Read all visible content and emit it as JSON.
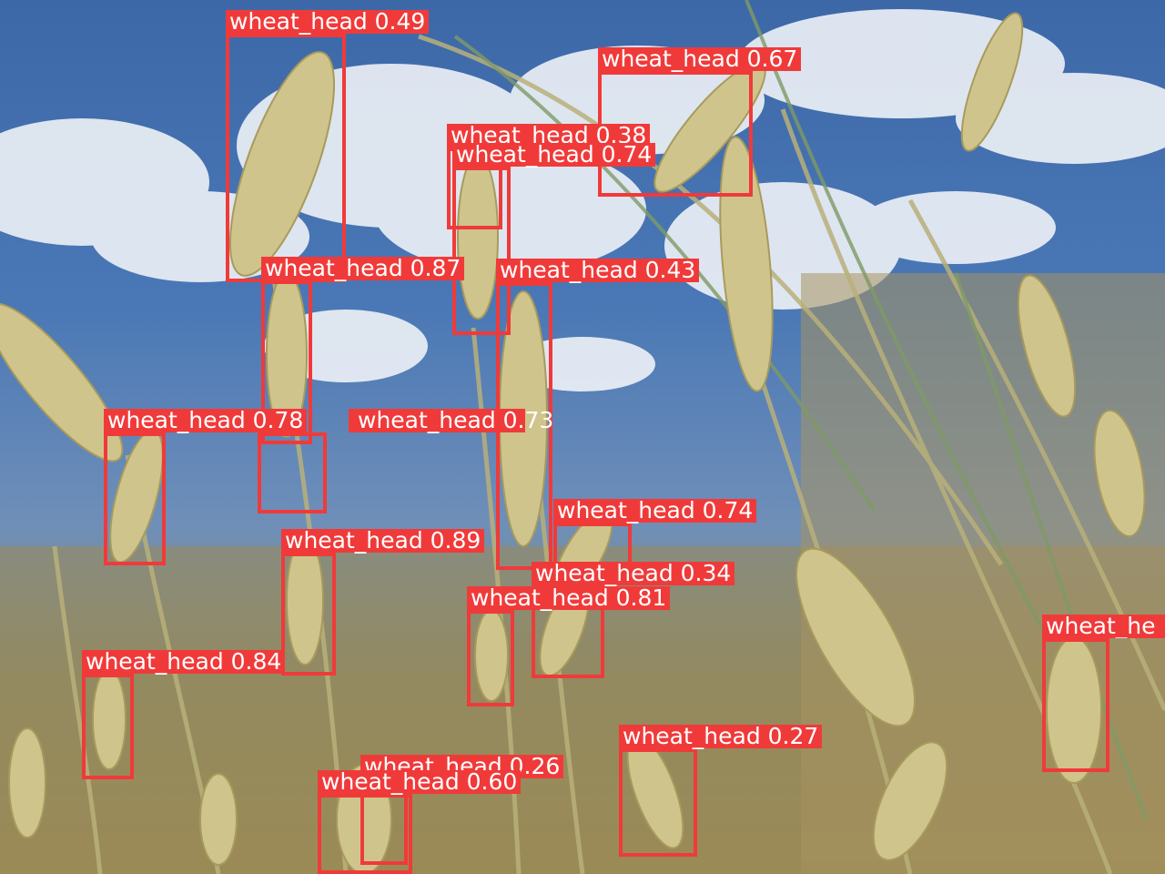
{
  "image": {
    "scene": "wheat ears against a blue sky with white clouds"
  },
  "colors": {
    "box": "#f03a3a",
    "label_text": "#ffffff"
  },
  "detections": [
    {
      "label": "wheat_head",
      "score": "0.49",
      "text": "wheat_head 0.49"
    },
    {
      "label": "wheat_head",
      "score": "0.67",
      "text": "wheat_head 0.67"
    },
    {
      "label": "wheat_head",
      "score": "0.38",
      "text": "wheat_head 0.38"
    },
    {
      "label": "wheat_head",
      "score": "0.74",
      "text": "wheat_head 0.74"
    },
    {
      "label": "wheat_head",
      "score": "0.87",
      "text": "wheat_head 0.87"
    },
    {
      "label": "wheat_head",
      "score": "0.43",
      "text": "wheat_head 0.43"
    },
    {
      "label": "wheat_head",
      "score": "0.78",
      "text": "wheat_head 0.78"
    },
    {
      "label": "wheat_head",
      "score": "0.73",
      "text": "wheat_head 0.73"
    },
    {
      "label": "wheat_head",
      "score": "0.74",
      "text": "wheat_head 0.74"
    },
    {
      "label": "wheat_head",
      "score": "0.89",
      "text": "wheat_head 0.89"
    },
    {
      "label": "wheat_head",
      "score": "0.34",
      "text": "wheat_head 0.34"
    },
    {
      "label": "wheat_head",
      "score": "0.81",
      "text": "wheat_head 0.81"
    },
    {
      "label": "wheat_head",
      "score": "0.84",
      "text": "wheat_head 0.84"
    },
    {
      "label": "wheat_head",
      "score": "",
      "text": "wheat_he"
    },
    {
      "label": "wheat_head",
      "score": "0.27",
      "text": "wheat_head 0.27"
    },
    {
      "label": "wheat_head",
      "score": "0.26",
      "text": "wheat_head 0.26"
    },
    {
      "label": "wheat_head",
      "score": "0.60",
      "text": "wheat_head 0.60"
    }
  ]
}
